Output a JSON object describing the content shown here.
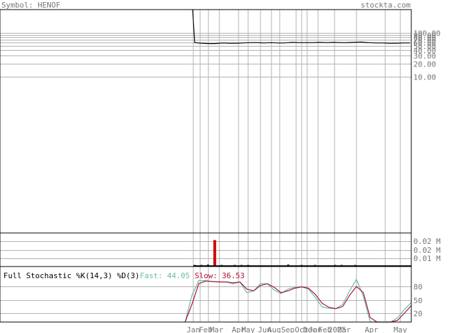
{
  "header": {
    "symbol_text": "Symbol: HENOF",
    "site_text": "stockta.com"
  },
  "stochastic": {
    "title": "Full Stochastic %K(14,3) %D(3)",
    "fast_label": "Fast: 44.05",
    "slow_label": "Slow: 36.53"
  },
  "colors": {
    "price_line": "#000000",
    "volume_bar": "#cc0000",
    "volume_small": "#336633",
    "fast_line": "#66bbaa",
    "slow_line": "#aa1133",
    "grid": "#b0b0b0",
    "frame": "#000000",
    "axis_text": "#777777"
  },
  "chart_data": [
    {
      "type": "line",
      "name": "price",
      "scale": "log",
      "y_ticks": [
        "100.00",
        "90.00",
        "80.00",
        "70.00",
        "60.00",
        "50.00",
        "40.00",
        "30.00",
        "20.00",
        "10.00"
      ],
      "y_tick_values": [
        100,
        90,
        80,
        70,
        60,
        50,
        40,
        30,
        20,
        10
      ],
      "x_ticks": [
        "Jan",
        "Feb",
        "Mar",
        "Apr",
        "May",
        "Jun",
        "Aug",
        "Sep",
        "Oct",
        "Dec",
        "Jan",
        "Feb",
        "2025",
        "Mar",
        "Apr",
        "May"
      ],
      "values": [
        1500,
        60,
        58,
        57,
        57,
        59,
        58,
        58,
        59,
        60,
        60,
        59,
        60,
        59,
        59,
        61,
        60,
        60,
        60,
        61,
        60,
        61,
        60,
        60,
        61,
        62,
        60,
        59,
        59,
        58,
        58,
        59,
        59
      ]
    },
    {
      "type": "bar",
      "name": "volume",
      "y_ticks": [
        "0.02 M",
        "0.02 M",
        "0.01 M"
      ],
      "values": [
        0.0005,
        0.001,
        0.0015,
        0.026,
        0.0005,
        0.0,
        0.0005,
        0.001,
        0.001,
        0.0,
        0.0,
        0.0,
        0.0,
        0.0,
        0.0015,
        0.0,
        0.001,
        0.0,
        0.001,
        0.0,
        0.0,
        0.001,
        0.001,
        0.0,
        0.001,
        0.0,
        0.0,
        0.0,
        0.0,
        0.0,
        0.0,
        0.0,
        0.0
      ]
    },
    {
      "type": "line",
      "name": "stochastic",
      "y_ticks": [
        "80",
        "50",
        "20"
      ],
      "ylim": [
        0,
        100
      ],
      "series": [
        {
          "name": "Fast",
          "values": [
            0,
            60,
            93,
            93,
            91,
            90,
            90,
            86,
            90,
            66,
            70,
            86,
            86,
            72,
            64,
            74,
            78,
            79,
            74,
            55,
            34,
            31,
            30,
            40,
            70,
            96,
            58,
            0,
            0,
            0,
            0,
            10,
            28,
            44
          ]
        },
        {
          "name": "Slow",
          "values": [
            0,
            40,
            86,
            92,
            91,
            90,
            90,
            88,
            90,
            74,
            70,
            82,
            86,
            78,
            66,
            70,
            76,
            79,
            76,
            62,
            42,
            33,
            30,
            35,
            60,
            80,
            66,
            10,
            0,
            0,
            0,
            4,
            20,
            37
          ]
        }
      ]
    }
  ]
}
